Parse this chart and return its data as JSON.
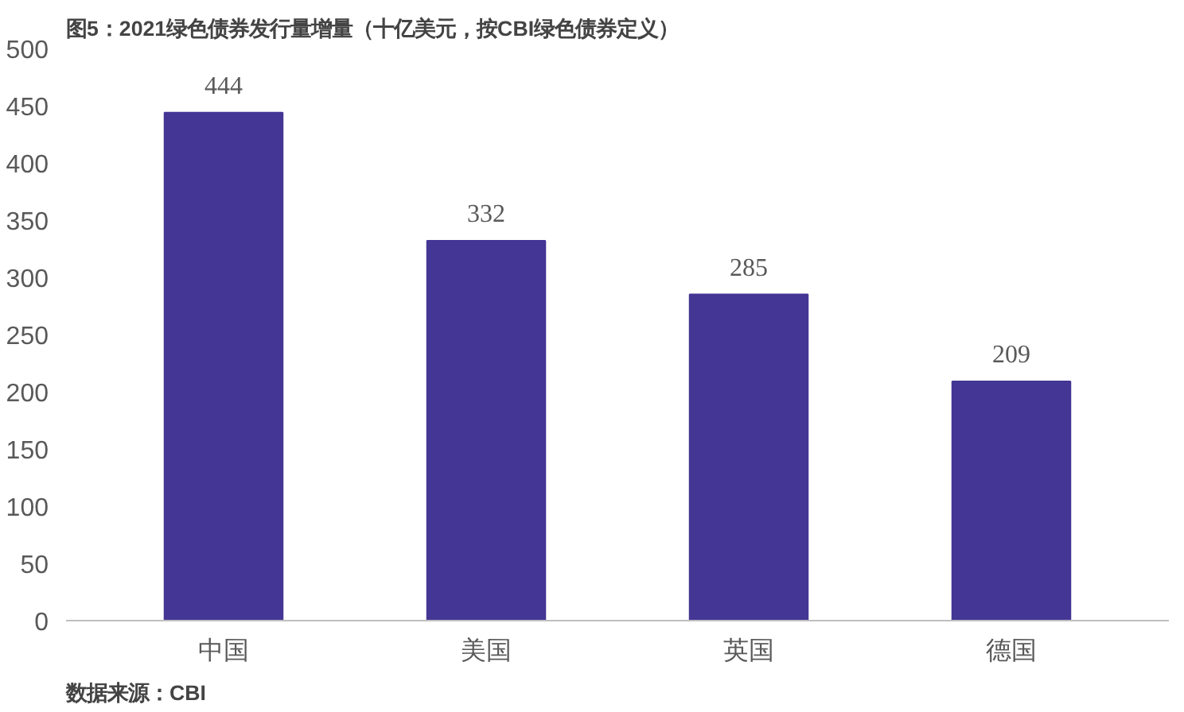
{
  "chart_data": {
    "type": "bar",
    "title": "图5：2021绿色债券发行量增量（十亿美元，按CBI绿色债券定义）",
    "categories": [
      "中国",
      "美国",
      "英国",
      "德国"
    ],
    "values": [
      444,
      332,
      285,
      209
    ],
    "color": "#443694",
    "ylim": [
      0,
      500
    ],
    "yticks": [
      0,
      50,
      100,
      150,
      200,
      250,
      300,
      350,
      400,
      450,
      500
    ],
    "grid": false,
    "data_labels": true,
    "annotations": [
      "数据来源：CBI"
    ]
  }
}
